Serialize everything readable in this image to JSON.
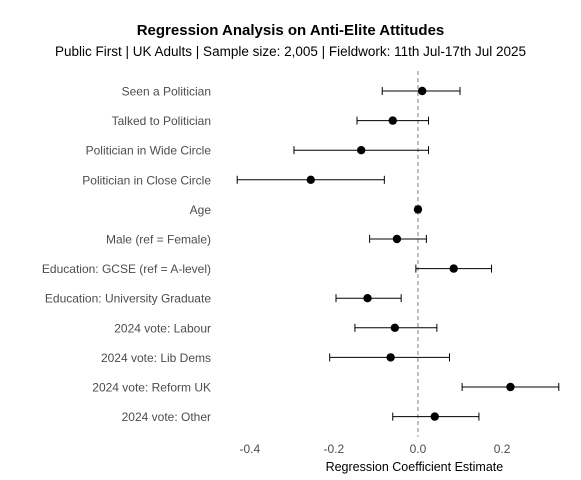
{
  "chart_data": {
    "type": "forest",
    "title": "Regression Analysis on Anti-Elite Attitudes",
    "subtitle": "Public First | UK Adults | Sample size: 2,005 | Fieldwork: 11th Jul-17th Jul 2025",
    "xlabel": "Regression Coefficient Estimate",
    "ylabel": "",
    "xlim": [
      -0.44,
      0.345
    ],
    "xticks": [
      -0.4,
      -0.2,
      0.0,
      0.2
    ],
    "xtick_labels": [
      "-0.4",
      "-0.2",
      "0.0",
      "0.2"
    ],
    "reference_line": {
      "x": 0,
      "style": "dashed"
    },
    "grid": false,
    "legend": "none",
    "terms": [
      {
        "label": "Seen a Politician",
        "estimate": 0.01,
        "ci_low": -0.085,
        "ci_high": 0.1
      },
      {
        "label": "Talked to Politician",
        "estimate": -0.06,
        "ci_low": -0.145,
        "ci_high": 0.025
      },
      {
        "label": "Politician in Wide Circle",
        "estimate": -0.135,
        "ci_low": -0.295,
        "ci_high": 0.025
      },
      {
        "label": "Politician in Close Circle",
        "estimate": -0.255,
        "ci_low": -0.43,
        "ci_high": -0.08
      },
      {
        "label": "Age",
        "estimate": 0.0,
        "ci_low": -0.005,
        "ci_high": 0.005
      },
      {
        "label": "Male (ref = Female)",
        "estimate": -0.05,
        "ci_low": -0.115,
        "ci_high": 0.02
      },
      {
        "label": "Education: GCSE (ref = A-level)",
        "estimate": 0.085,
        "ci_low": -0.005,
        "ci_high": 0.175
      },
      {
        "label": "Education: University Graduate",
        "estimate": -0.12,
        "ci_low": -0.195,
        "ci_high": -0.04
      },
      {
        "label": "2024 vote: Labour",
        "estimate": -0.055,
        "ci_low": -0.15,
        "ci_high": 0.045
      },
      {
        "label": "2024 vote: Lib Dems",
        "estimate": -0.065,
        "ci_low": -0.21,
        "ci_high": 0.075
      },
      {
        "label": "2024 vote: Reform UK",
        "estimate": 0.22,
        "ci_low": 0.105,
        "ci_high": 0.335
      },
      {
        "label": "2024 vote: Other",
        "estimate": 0.04,
        "ci_low": -0.06,
        "ci_high": 0.145
      }
    ],
    "colors": {
      "point": "#000000",
      "errorbar": "#000000",
      "reference_line": "#808080",
      "axis_text": "#4d4d4d"
    }
  }
}
